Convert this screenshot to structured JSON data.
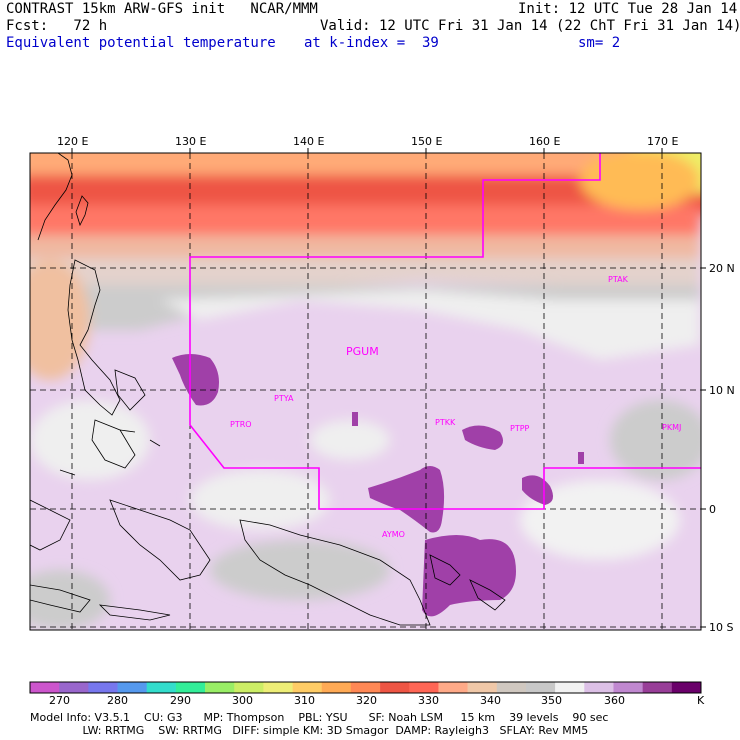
{
  "header": {
    "line1_left": "CONTRAST 15km ARW-GFS init   NCAR/MMM",
    "line1_right": "Init: 12 UTC Tue 28 Jan 14",
    "line2_left": "Fcst:   72 h",
    "line2_right": "Valid: 12 UTC Fri 31 Jan 14 (22 ChT Fri 31 Jan 14)",
    "line3_left": "Equivalent potential temperature",
    "line3_mid": "at k-index =  39",
    "line3_right": "sm= 2"
  },
  "map": {
    "lon_labels": [
      "120 E",
      "130 E",
      "140 E",
      "150 E",
      "160 E",
      "170 E"
    ],
    "lat_labels": [
      "20 N",
      "10 N",
      "0",
      "10 S"
    ],
    "stations": [
      "PTAK",
      "PGUM",
      "PTYA",
      "PTRO",
      "PTKK",
      "PTPP",
      "PKMJ",
      "AYMO"
    ],
    "colors": {
      "boundary": "#ff00ff",
      "grid": "#000000"
    }
  },
  "colorbar": {
    "labels": [
      "270",
      "280",
      "290",
      "300",
      "310",
      "320",
      "330",
      "340",
      "350",
      "360",
      "K"
    ],
    "colors": [
      "#cc55cc",
      "#9966cc",
      "#7777ee",
      "#5599ee",
      "#33ddcc",
      "#33ee99",
      "#99ee66",
      "#ccee66",
      "#eeee77",
      "#ffcc66",
      "#ffaa55",
      "#ff8855",
      "#ee5544",
      "#ff6655",
      "#ffaa88",
      "#f0c8a8",
      "#d0c8c0",
      "#c8c8c8",
      "#f2f2f2",
      "#dcc0e6",
      "#c088d0",
      "#983e98",
      "#6a006a"
    ]
  },
  "footer": {
    "line1": "Model Info: V3.5.1    CU: G3      MP: Thompson    PBL: YSU      SF: Noah LSM     15 km    39 levels    90 sec",
    "line2": "               LW: RRTMG    SW: RRTMG   DIFF: simple KM: 3D Smagor  DAMP: Rayleigh3   SFLAY: Rev MM5"
  }
}
